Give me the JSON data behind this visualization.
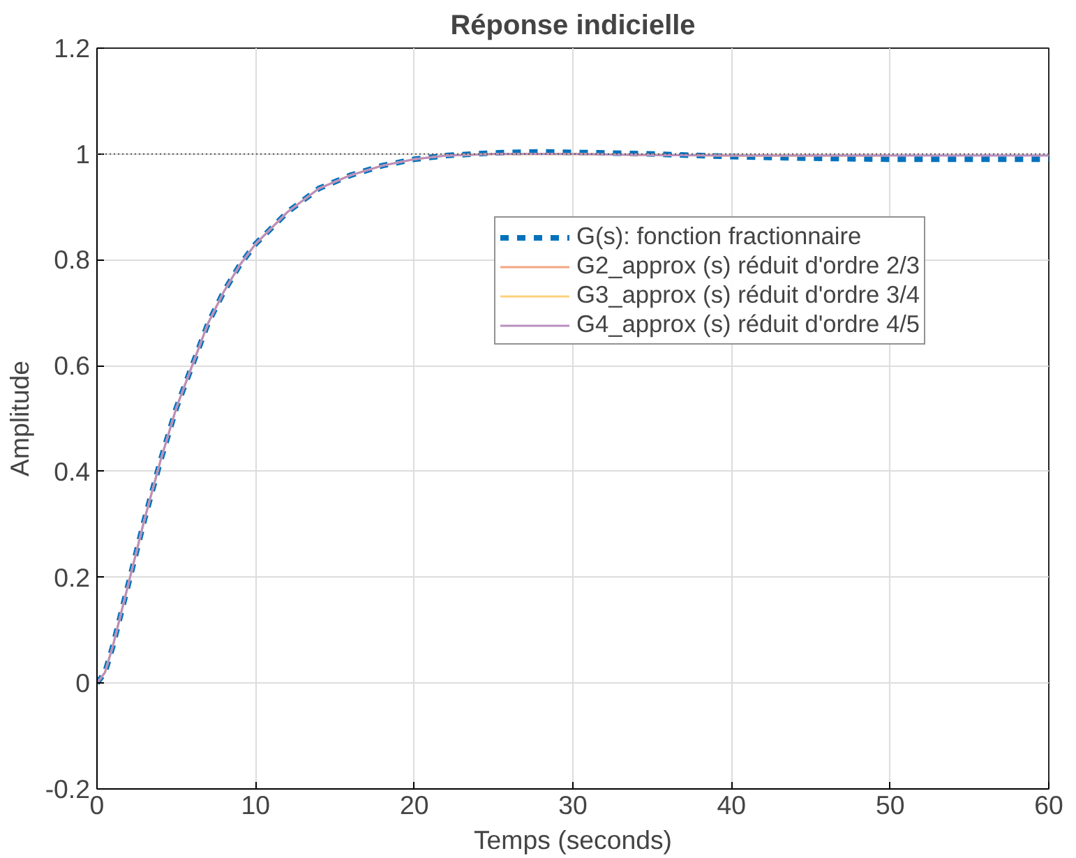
{
  "chart_data": {
    "type": "line",
    "title": "Réponse indicielle",
    "xlabel": "Temps (seconds)",
    "ylabel": "Amplitude",
    "xlim": [
      0,
      60
    ],
    "ylim": [
      -0.2,
      1.2
    ],
    "xticks": [
      0,
      10,
      20,
      30,
      40,
      50,
      60
    ],
    "yticks": [
      -0.2,
      0,
      0.2,
      0.4,
      0.6,
      0.8,
      1,
      1.2
    ],
    "grid": true,
    "legend": "top right",
    "x": [
      0,
      0.5,
      1,
      2,
      3,
      4,
      5,
      6,
      7,
      8,
      9,
      10,
      12,
      14,
      16,
      18,
      20,
      22,
      25,
      28,
      30,
      35,
      40,
      45,
      50,
      55,
      60
    ],
    "ref_lines": [
      {
        "axis": "y",
        "value": 1,
        "color": "#555555",
        "line_style": "dotted"
      }
    ],
    "series": [
      {
        "name": "G(s): fonction fractionnaire",
        "color": "#0072bd",
        "line_style": "dashed",
        "values": [
          0,
          0.02,
          0.07,
          0.19,
          0.31,
          0.42,
          0.52,
          0.6,
          0.68,
          0.74,
          0.79,
          0.83,
          0.89,
          0.935,
          0.96,
          0.978,
          0.99,
          0.997,
          1.002,
          1.004,
          1.003,
          1.0,
          0.995,
          0.992,
          0.99,
          0.99,
          0.99
        ]
      },
      {
        "name": "G2_approx (s) réduit d'ordre 2/3",
        "color": "#f4a582",
        "line_style": "solid",
        "values": [
          0,
          0.02,
          0.07,
          0.19,
          0.31,
          0.42,
          0.52,
          0.6,
          0.68,
          0.74,
          0.79,
          0.83,
          0.89,
          0.935,
          0.96,
          0.978,
          0.99,
          0.997,
          1.0,
          1.0,
          1.0,
          0.998,
          0.997,
          0.997,
          0.997,
          null,
          null
        ]
      },
      {
        "name": "G3_approx (s) réduit d'ordre 3/4",
        "color": "#fdd17a",
        "line_style": "solid",
        "values": [
          0,
          0.02,
          0.07,
          0.19,
          0.31,
          0.42,
          0.52,
          0.6,
          0.68,
          0.74,
          0.79,
          0.83,
          0.89,
          0.935,
          0.96,
          0.978,
          0.99,
          0.997,
          1.0,
          1.0,
          1.0,
          0.998,
          0.997,
          0.997,
          null,
          null,
          null
        ]
      },
      {
        "name": "G4_approx (s) réduit d'ordre 4/5",
        "color": "#b98fc0",
        "line_style": "solid",
        "values": [
          0,
          0.02,
          0.07,
          0.19,
          0.31,
          0.42,
          0.52,
          0.6,
          0.68,
          0.74,
          0.79,
          0.83,
          0.89,
          0.935,
          0.96,
          0.978,
          0.99,
          0.997,
          1.0,
          1.0,
          1.0,
          0.998,
          0.997,
          0.997,
          0.997,
          0.997,
          0.997
        ]
      }
    ]
  }
}
